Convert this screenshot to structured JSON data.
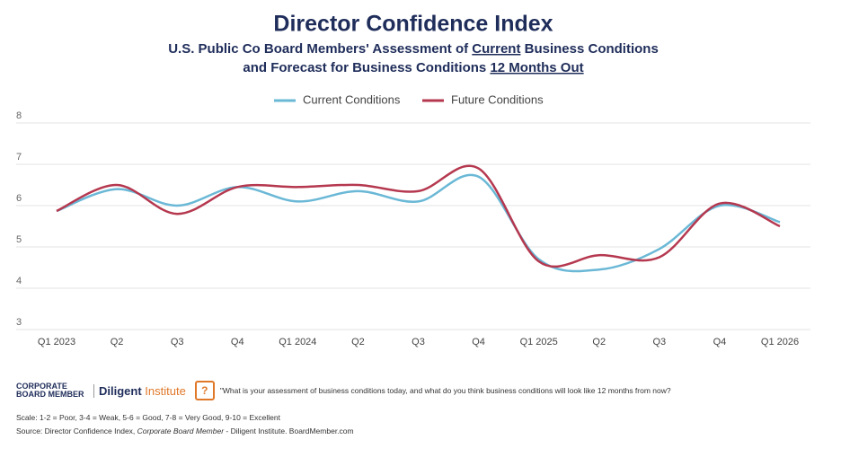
{
  "chart_data": {
    "type": "line",
    "title": "Director Confidence Index",
    "subtitle_parts": [
      "U.S. Public Co Board Members' Assessment of ",
      "Current",
      " Business Conditions",
      "and Forecast for Business Conditions ",
      "12 Months Out"
    ],
    "categories": [
      "Q1 2023",
      "Q2",
      "Q3",
      "Q4",
      "Q1 2024",
      "Q2",
      "Q3",
      "Q4",
      "Q1 2025",
      "Q2",
      "Q3",
      "Q4",
      "Q1 2026"
    ],
    "series": [
      {
        "name": "Current Conditions",
        "color": "#6ab8d6",
        "values": [
          5.87,
          6.4,
          6.0,
          6.45,
          6.1,
          6.35,
          6.1,
          6.7,
          4.7,
          4.45,
          4.95,
          6.0,
          5.6
        ]
      },
      {
        "name": "Future Conditions",
        "color": "#b5384f",
        "values": [
          5.87,
          6.5,
          5.8,
          6.45,
          6.45,
          6.5,
          6.35,
          6.9,
          4.65,
          4.8,
          4.75,
          6.05,
          5.5
        ]
      }
    ],
    "ylim": [
      3,
      8
    ],
    "yticks": [
      3,
      4,
      5,
      6,
      7,
      8
    ],
    "grid": true,
    "legend": "top",
    "footer": {
      "logo1": "CORPORATE BOARD MEMBER",
      "logo2a": "Diligent",
      "logo2b": "Institute",
      "icon": "?",
      "question": "\"What is your assessment of business conditions today, and what do you think business conditions will look like 12 months from now?",
      "scale": "Scale: 1-2 = Poor, 3-4 = Weak, 5-6 = Good, 7-8 = Very Good, 9-10 = Excellent",
      "source_parts": [
        "Source: Director Confidence Index, ",
        "Corporate Board Member",
        " - Diligent Institute. BoardMember.com"
      ]
    }
  }
}
